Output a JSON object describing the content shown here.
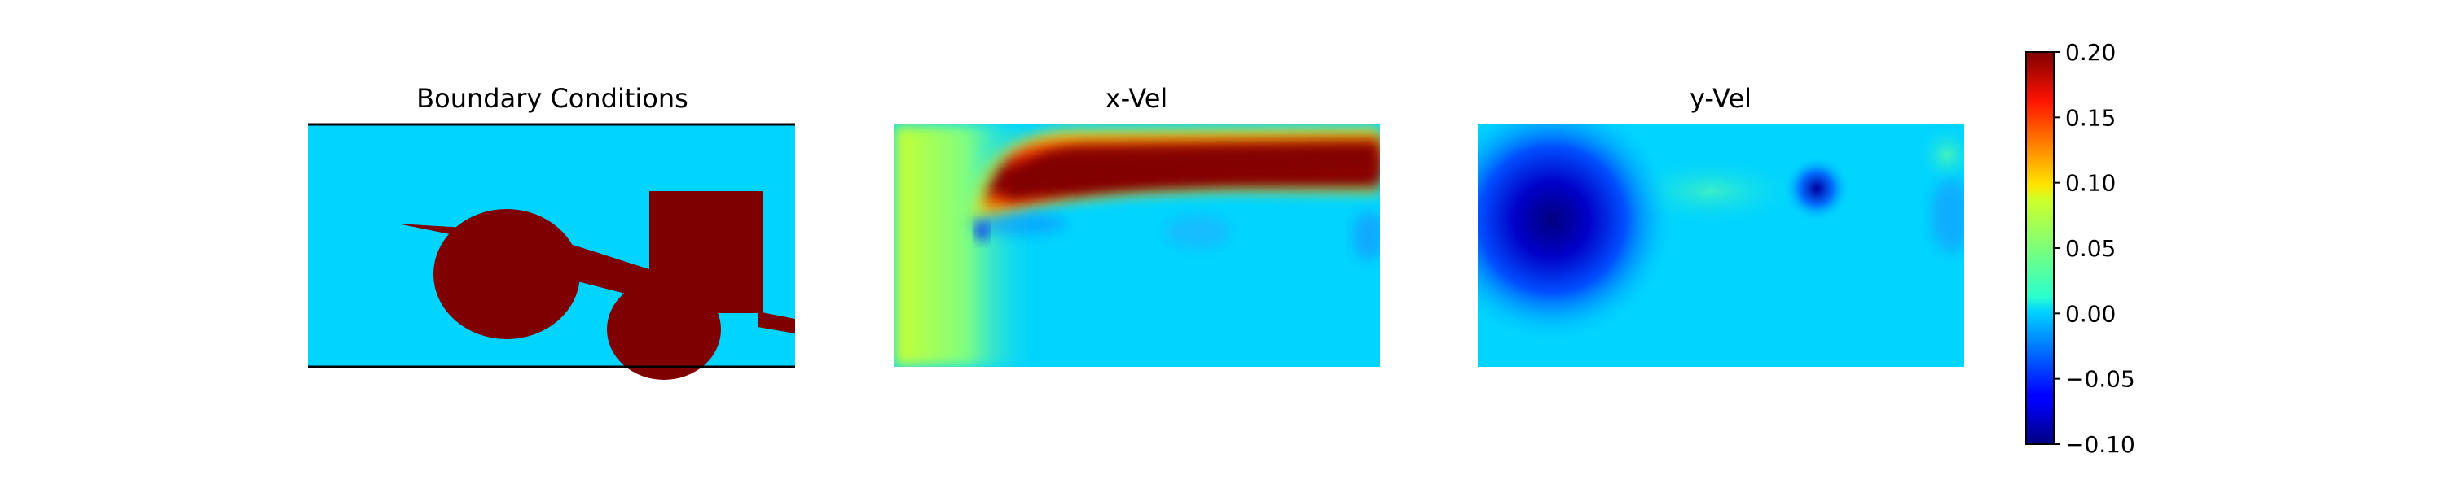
{
  "chart_data": {
    "type": "heatmap",
    "colormap": "jet",
    "colorbar": {
      "range": [
        -0.1,
        0.2
      ],
      "ticks": [
        -0.1,
        -0.05,
        0.0,
        0.05,
        0.1,
        0.15,
        0.2
      ],
      "tick_labels": [
        "−0.10",
        "−0.05",
        "0.00",
        "0.05",
        "0.10",
        "0.15",
        "0.20"
      ]
    },
    "panels": [
      {
        "title": "Boundary Conditions",
        "values": "binary mask: 0 = fluid, 1 = solid obstacles (walls at top and bottom)"
      },
      {
        "title": "x-Vel",
        "values": "0.0 to >0.20; high-speed jet along top, ~0.06 near left inlet"
      },
      {
        "title": "y-Vel",
        "values": "−0.10 to ~0.03; strong negative vortex near left obstacle"
      }
    ]
  }
}
